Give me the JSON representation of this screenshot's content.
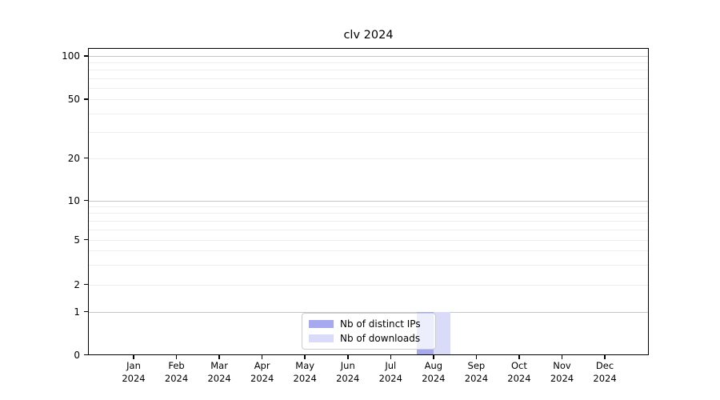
{
  "chart_data": {
    "type": "bar",
    "title": "clv 2024",
    "categories": [
      "Jan 2024",
      "Feb 2024",
      "Mar 2024",
      "Apr 2024",
      "May 2024",
      "Jun 2024",
      "Jul 2024",
      "Aug 2024",
      "Sep 2024",
      "Oct 2024",
      "Nov 2024",
      "Dec 2024"
    ],
    "series": [
      {
        "name": "Nb of distinct IPs",
        "color": "#a7a9f0",
        "values": [
          0,
          0,
          0,
          0,
          0,
          0,
          0,
          1,
          0,
          0,
          0,
          0
        ]
      },
      {
        "name": "Nb of downloads",
        "color": "#dadbf8",
        "values": [
          0,
          0,
          0,
          0,
          0,
          0,
          0,
          1,
          0,
          0,
          0,
          0
        ]
      }
    ],
    "xlabel": "",
    "ylabel": "",
    "yscale": "symlog",
    "ylim": [
      0,
      115
    ],
    "ytick_values": [
      0,
      1,
      2,
      5,
      10,
      20,
      50,
      100
    ],
    "ytick_labels": [
      "0",
      "1",
      "2",
      "5",
      "10",
      "20",
      "50",
      "100"
    ],
    "grid": "on",
    "legend_position": "lower center"
  },
  "colors": {
    "major_grid": "#c6c6c6",
    "minor_grid": "#ededed",
    "spine": "#000000",
    "background": "#ffffff"
  }
}
